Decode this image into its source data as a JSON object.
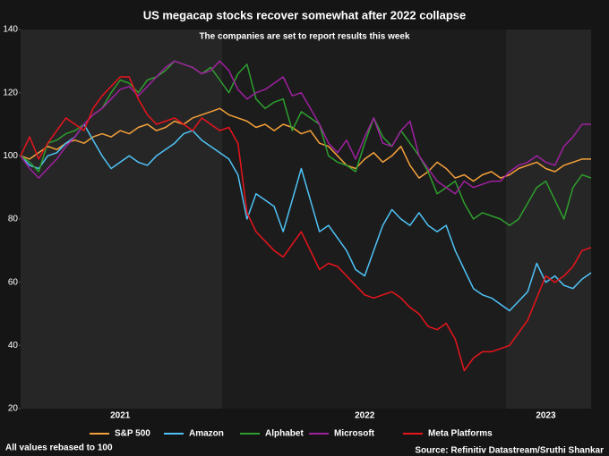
{
  "chart_data": {
    "type": "line",
    "title": "US megacap stocks recover somewhat after 2022 collapse",
    "subtitle": "The companies are set to report results this week",
    "note": "All values rebased to 100",
    "source": "Source: Refinitiv Datastream/Sruthi Shankar",
    "categories": [
      null,
      null,
      null,
      null,
      null,
      null,
      null,
      null,
      null,
      null,
      null,
      "2021",
      null,
      null,
      null,
      null,
      null,
      null,
      null,
      null,
      null,
      null,
      null,
      null,
      null,
      null,
      null,
      null,
      null,
      null,
      null,
      null,
      null,
      null,
      null,
      null,
      null,
      null,
      "2022",
      null,
      null,
      null,
      null,
      null,
      null,
      null,
      null,
      null,
      null,
      null,
      null,
      null,
      null,
      null,
      null,
      null,
      null,
      null,
      "2023",
      null,
      null,
      null,
      null,
      null
    ],
    "series": [
      {
        "name": "S&P 500",
        "color": "#f5a13a",
        "values": [
          100,
          99,
          101,
          103,
          102,
          104,
          105,
          104,
          106,
          107,
          106,
          108,
          107,
          109,
          110,
          108,
          109,
          111,
          110,
          112,
          113,
          114,
          115,
          113,
          112,
          111,
          109,
          110,
          108,
          110,
          109,
          107,
          108,
          104,
          103,
          100,
          97,
          96,
          99,
          101,
          98,
          100,
          103,
          97,
          93,
          95,
          98,
          96,
          93,
          94,
          92,
          94,
          95,
          93,
          94,
          96,
          97,
          98,
          96,
          95,
          97,
          98,
          99,
          99
        ]
      },
      {
        "name": "Amazon",
        "color": "#4fc3f7",
        "values": [
          100,
          97,
          96,
          100,
          101,
          104,
          106,
          110,
          105,
          100,
          96,
          98,
          100,
          98,
          97,
          100,
          102,
          104,
          107,
          108,
          105,
          103,
          101,
          99,
          94,
          80,
          88,
          86,
          84,
          76,
          86,
          96,
          86,
          76,
          78,
          74,
          70,
          64,
          62,
          70,
          78,
          83,
          80,
          78,
          82,
          78,
          76,
          78,
          70,
          64,
          58,
          56,
          55,
          53,
          51,
          54,
          57,
          66,
          60,
          62,
          59,
          58,
          61,
          63
        ]
      },
      {
        "name": "Alphabet",
        "color": "#2e9e2e",
        "values": [
          100,
          98,
          95,
          104,
          105,
          107,
          108,
          110,
          113,
          115,
          120,
          124,
          123,
          120,
          124,
          125,
          127,
          130,
          129,
          128,
          126,
          128,
          124,
          120,
          126,
          129,
          118,
          115,
          117,
          118,
          108,
          114,
          112,
          110,
          100,
          98,
          97,
          95,
          104,
          112,
          106,
          103,
          108,
          104,
          100,
          95,
          88,
          90,
          92,
          85,
          80,
          82,
          81,
          80,
          78,
          80,
          85,
          90,
          92,
          86,
          80,
          90,
          94,
          93
        ]
      },
      {
        "name": "Microsoft",
        "color": "#a020a0",
        "values": [
          100,
          96,
          93,
          96,
          99,
          103,
          106,
          110,
          113,
          115,
          118,
          121,
          122,
          119,
          122,
          125,
          128,
          130,
          129,
          128,
          126,
          127,
          130,
          127,
          121,
          118,
          120,
          121,
          123,
          125,
          119,
          120,
          115,
          110,
          104,
          101,
          105,
          99,
          106,
          112,
          104,
          103,
          108,
          111,
          100,
          96,
          92,
          90,
          88,
          92,
          90,
          91,
          92,
          92,
          95,
          97,
          98,
          100,
          98,
          97,
          103,
          106,
          110,
          110
        ]
      },
      {
        "name": "Meta Platforms",
        "color": "#e8141c",
        "values": [
          100,
          106,
          99,
          104,
          108,
          112,
          110,
          108,
          115,
          119,
          122,
          125,
          125,
          118,
          113,
          110,
          111,
          112,
          110,
          108,
          112,
          110,
          108,
          109,
          104,
          82,
          76,
          73,
          70,
          68,
          72,
          76,
          70,
          64,
          66,
          65,
          62,
          59,
          56,
          55,
          56,
          57,
          55,
          52,
          50,
          46,
          45,
          47,
          42,
          32,
          36,
          38,
          38,
          39,
          40,
          44,
          48,
          55,
          62,
          60,
          62,
          65,
          70,
          71
        ]
      }
    ],
    "ylim": [
      20,
      140
    ],
    "yticks": [
      20,
      40,
      60,
      80,
      100,
      120,
      140
    ]
  }
}
